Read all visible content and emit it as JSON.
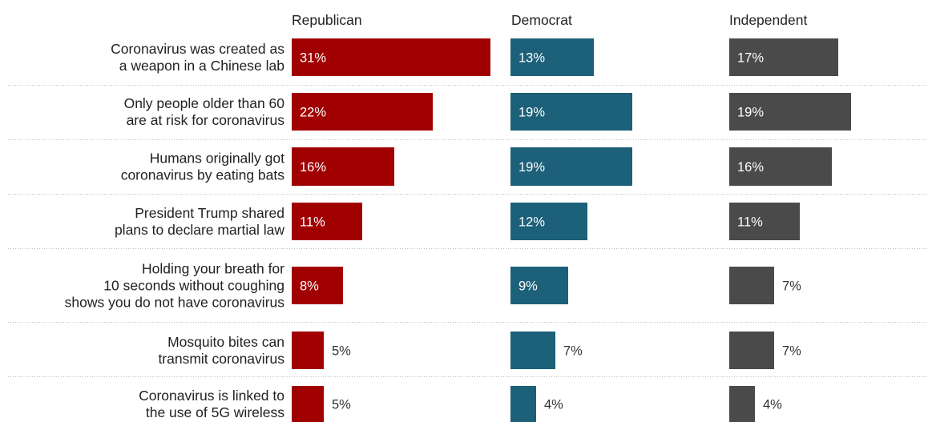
{
  "chart_data": {
    "type": "bar",
    "orientation": "horizontal",
    "grid": false,
    "value_suffix": "%",
    "colors": {
      "Republican": "#a10000",
      "Democrat": "#1c6079",
      "Independent": "#4a4a4a"
    },
    "categories": [
      "Coronavirus was created as\na weapon in a Chinese lab",
      "Only people older than 60\nare at risk for coronavirus",
      "Humans originally got\ncoronavirus by eating bats",
      "President Trump shared\nplans to declare martial law",
      "Holding your breath for\n10 seconds without coughing\nshows you do not have coronavirus",
      "Mosquito bites can\ntransmit coronavirus",
      "Coronavirus is linked to\nthe use of 5G wireless"
    ],
    "series": [
      {
        "name": "Republican",
        "values": [
          31,
          22,
          16,
          11,
          8,
          5,
          5
        ]
      },
      {
        "name": "Democrat",
        "values": [
          13,
          19,
          19,
          12,
          9,
          7,
          4
        ]
      },
      {
        "name": "Independent",
        "values": [
          17,
          19,
          16,
          11,
          7,
          7,
          4
        ]
      }
    ]
  }
}
